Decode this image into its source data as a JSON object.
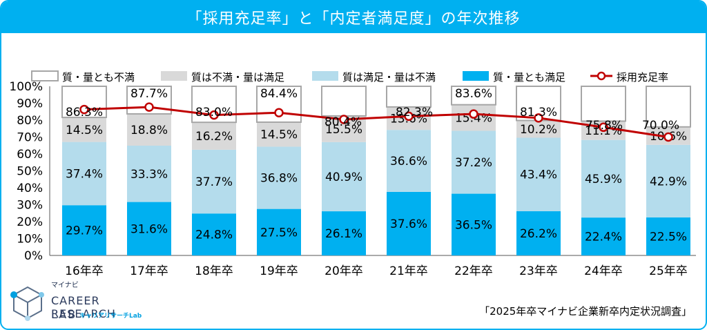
{
  "title": "「採用充足率」と「内定者満足度」の年次推移",
  "source": "「2025年卒マイナビ企業新卒内定状況調査」",
  "logo": {
    "brand": "マイナビ",
    "line1": "CAREER RESEARCH",
    "line2": "LAB",
    "sub": "キャリアリサーチLab"
  },
  "chart_data": {
    "type": "bar",
    "stacked": true,
    "categories": [
      "16年卒",
      "17年卒",
      "18年卒",
      "19年卒",
      "20年卒",
      "21年卒",
      "22年卒",
      "23年卒",
      "24年卒",
      "25年卒"
    ],
    "series": [
      {
        "name": "質・量とも満足",
        "color": "#00b0f0",
        "values": [
          29.7,
          31.6,
          24.8,
          27.5,
          26.1,
          37.6,
          36.5,
          26.2,
          22.4,
          22.5
        ]
      },
      {
        "name": "質は満足・量は不満",
        "color": "#b4dcec",
        "values": [
          37.4,
          33.3,
          37.7,
          36.8,
          40.9,
          36.6,
          37.2,
          43.4,
          45.9,
          42.9
        ]
      },
      {
        "name": "質は不満・量は満足",
        "color": "#d9d9d9",
        "values": [
          14.5,
          18.8,
          16.2,
          14.5,
          15.5,
          13.6,
          15.4,
          10.2,
          11.1,
          10.6
        ]
      },
      {
        "name": "質・量とも不満",
        "color": "#ffffff",
        "values": [
          18.4,
          16.3,
          21.3,
          21.2,
          17.5,
          12.2,
          10.9,
          20.2,
          20.6,
          24.0
        ]
      }
    ],
    "line": {
      "name": "採用充足率",
      "color": "#c00000",
      "values": [
        86.3,
        87.7,
        83.0,
        84.4,
        80.4,
        82.3,
        83.6,
        81.3,
        75.8,
        70.0
      ]
    },
    "data_labels": {
      "bottom": [
        "29.7%",
        "31.6%",
        "24.8%",
        "27.5%",
        "26.1%",
        "37.6%",
        "36.5%",
        "26.2%",
        "22.4%",
        "22.5%"
      ],
      "middle": [
        "37.4%",
        "33.3%",
        "37.7%",
        "36.8%",
        "40.9%",
        "36.6%",
        "37.2%",
        "43.4%",
        "45.9%",
        "42.9%"
      ],
      "upper": [
        "14.5%",
        "18.8%",
        "16.2%",
        "14.5%",
        "15.5%",
        "13.6%",
        "15.4%",
        "10.2%",
        "11.1%",
        "10.6%"
      ],
      "line": [
        "86.3%",
        "87.7%",
        "83.0%",
        "84.4%",
        "80.4%",
        "82.3%",
        "83.6%",
        "81.3%",
        "75.8%",
        "70.0%"
      ]
    },
    "legend_order": [
      "質・量とも不満",
      "質は不満・量は満足",
      "質は満足・量は不満",
      "質・量とも満足",
      "採用充足率"
    ],
    "legend_position": "top",
    "ylim": [
      0,
      100
    ],
    "yticks": [
      "0%",
      "10%",
      "20%",
      "30%",
      "40%",
      "50%",
      "60%",
      "70%",
      "80%",
      "90%",
      "100%"
    ],
    "grid": false
  }
}
